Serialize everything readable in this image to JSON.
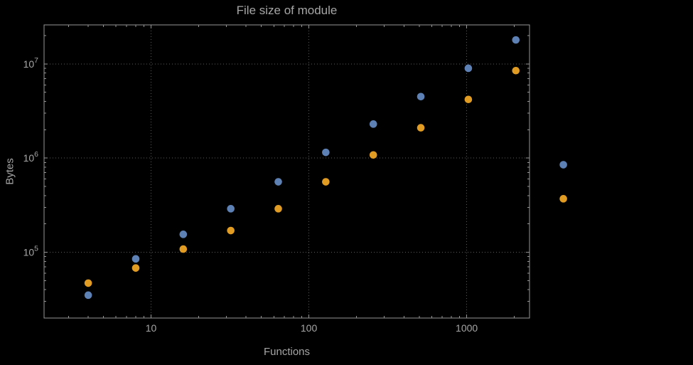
{
  "style": {
    "background": "#000000",
    "label": "#a6a6a6",
    "frame": "#969696",
    "grid": "#5c5c5c"
  },
  "chart_data": {
    "type": "scatter",
    "title": "File size of module",
    "xlabel": "Functions",
    "ylabel": "Bytes",
    "xscale": "log",
    "yscale": "log",
    "xlim": [
      2.1,
      2500
    ],
    "ylim": [
      20000,
      26000000
    ],
    "x_ticks": [
      10,
      100,
      1000
    ],
    "y_ticks": [
      100000,
      1000000,
      10000000
    ],
    "grid": "dotted",
    "legend": "none",
    "series": [
      {
        "name": "blue",
        "color": "#5E81B5",
        "x": [
          4,
          8,
          16,
          32,
          64,
          128,
          256,
          512,
          1024,
          2048,
          4096
        ],
        "y": [
          35000,
          85000,
          155000,
          290000,
          560000,
          1150000,
          2300000,
          4500000,
          9000000,
          18000000,
          850000
        ]
      },
      {
        "name": "orange",
        "color": "#E19C24",
        "x": [
          4,
          8,
          16,
          32,
          64,
          128,
          256,
          512,
          1024,
          2048,
          4096
        ],
        "y": [
          47000,
          68000,
          108000,
          170000,
          290000,
          560000,
          1080000,
          2100000,
          4200000,
          8500000,
          370000
        ]
      }
    ]
  }
}
